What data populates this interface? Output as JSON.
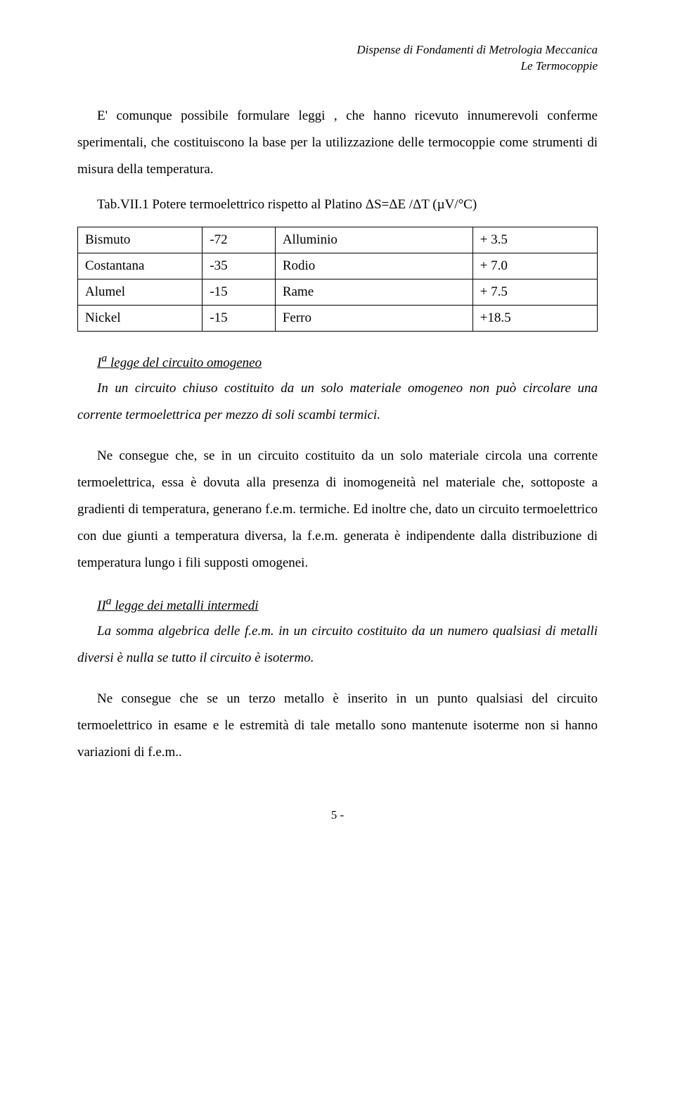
{
  "header": {
    "line1": "Dispense di Fondamenti di Metrologia Meccanica",
    "line2": "Le Termocoppie"
  },
  "intro": "E' comunque possibile formulare leggi , che hanno ricevuto innumerevoli conferme sperimentali, che costituiscono la base per la utilizzazione delle termocoppie come strumenti di misura della temperatura.",
  "table_caption": "Tab.VII.1 Potere termoelettrico rispetto al Platino ΔS=ΔE /ΔT (µV/°C)",
  "table": {
    "columns": [
      "material_a",
      "value_a",
      "material_b",
      "value_b"
    ],
    "col_widths_pct": [
      24,
      14,
      38,
      24
    ],
    "rows": [
      [
        "Bismuto",
        "-72",
        "Alluminio",
        "+ 3.5"
      ],
      [
        "Costantana",
        "-35",
        "Rodio",
        "+ 7.0"
      ],
      [
        "Alumel",
        "-15",
        "Rame",
        "+ 7.5"
      ],
      [
        "Nickel",
        "-15",
        "Ferro",
        "+18.5"
      ]
    ],
    "border_color": "#000000",
    "background_color": "#ffffff",
    "font_size_pt": 14
  },
  "law1": {
    "sup": "a",
    "prefix": "I",
    "title_rest": " legge del circuito omogeneo",
    "statement": "In un circuito chiuso costituito da un solo materiale omogeneo non può circolare una corrente termoelettrica per mezzo di soli scambi termici.",
    "consequence": "Ne consegue che, se in un circuito costituito da un solo materiale circola una corrente termoelettrica, essa è dovuta alla presenza di inomogeneità nel materiale che, sottoposte a gradienti di temperatura, generano f.e.m. termiche. Ed inoltre che, dato un circuito termoelettrico con due giunti a temperatura diversa, la f.e.m. generata è indipendente dalla distribuzione di temperatura lungo i fili supposti omogenei."
  },
  "law2": {
    "sup": "a",
    "prefix": "II",
    "title_rest": " legge dei metalli intermedi",
    "statement": "La somma algebrica delle f.e.m. in un circuito costituito da un numero qualsiasi di metalli diversi è nulla se tutto il circuito è isotermo.",
    "consequence": "Ne consegue che se un terzo metallo è inserito in un punto qualsiasi del circuito termoelettrico in esame e le estremità di tale metallo sono mantenute isoterme non si hanno variazioni di f.e.m.."
  },
  "page_number": "5 -",
  "typography": {
    "font_family": "Times New Roman",
    "body_fontsize_pt": 14,
    "line_height": 2.0,
    "text_color": "#000000",
    "background_color": "#ffffff"
  }
}
